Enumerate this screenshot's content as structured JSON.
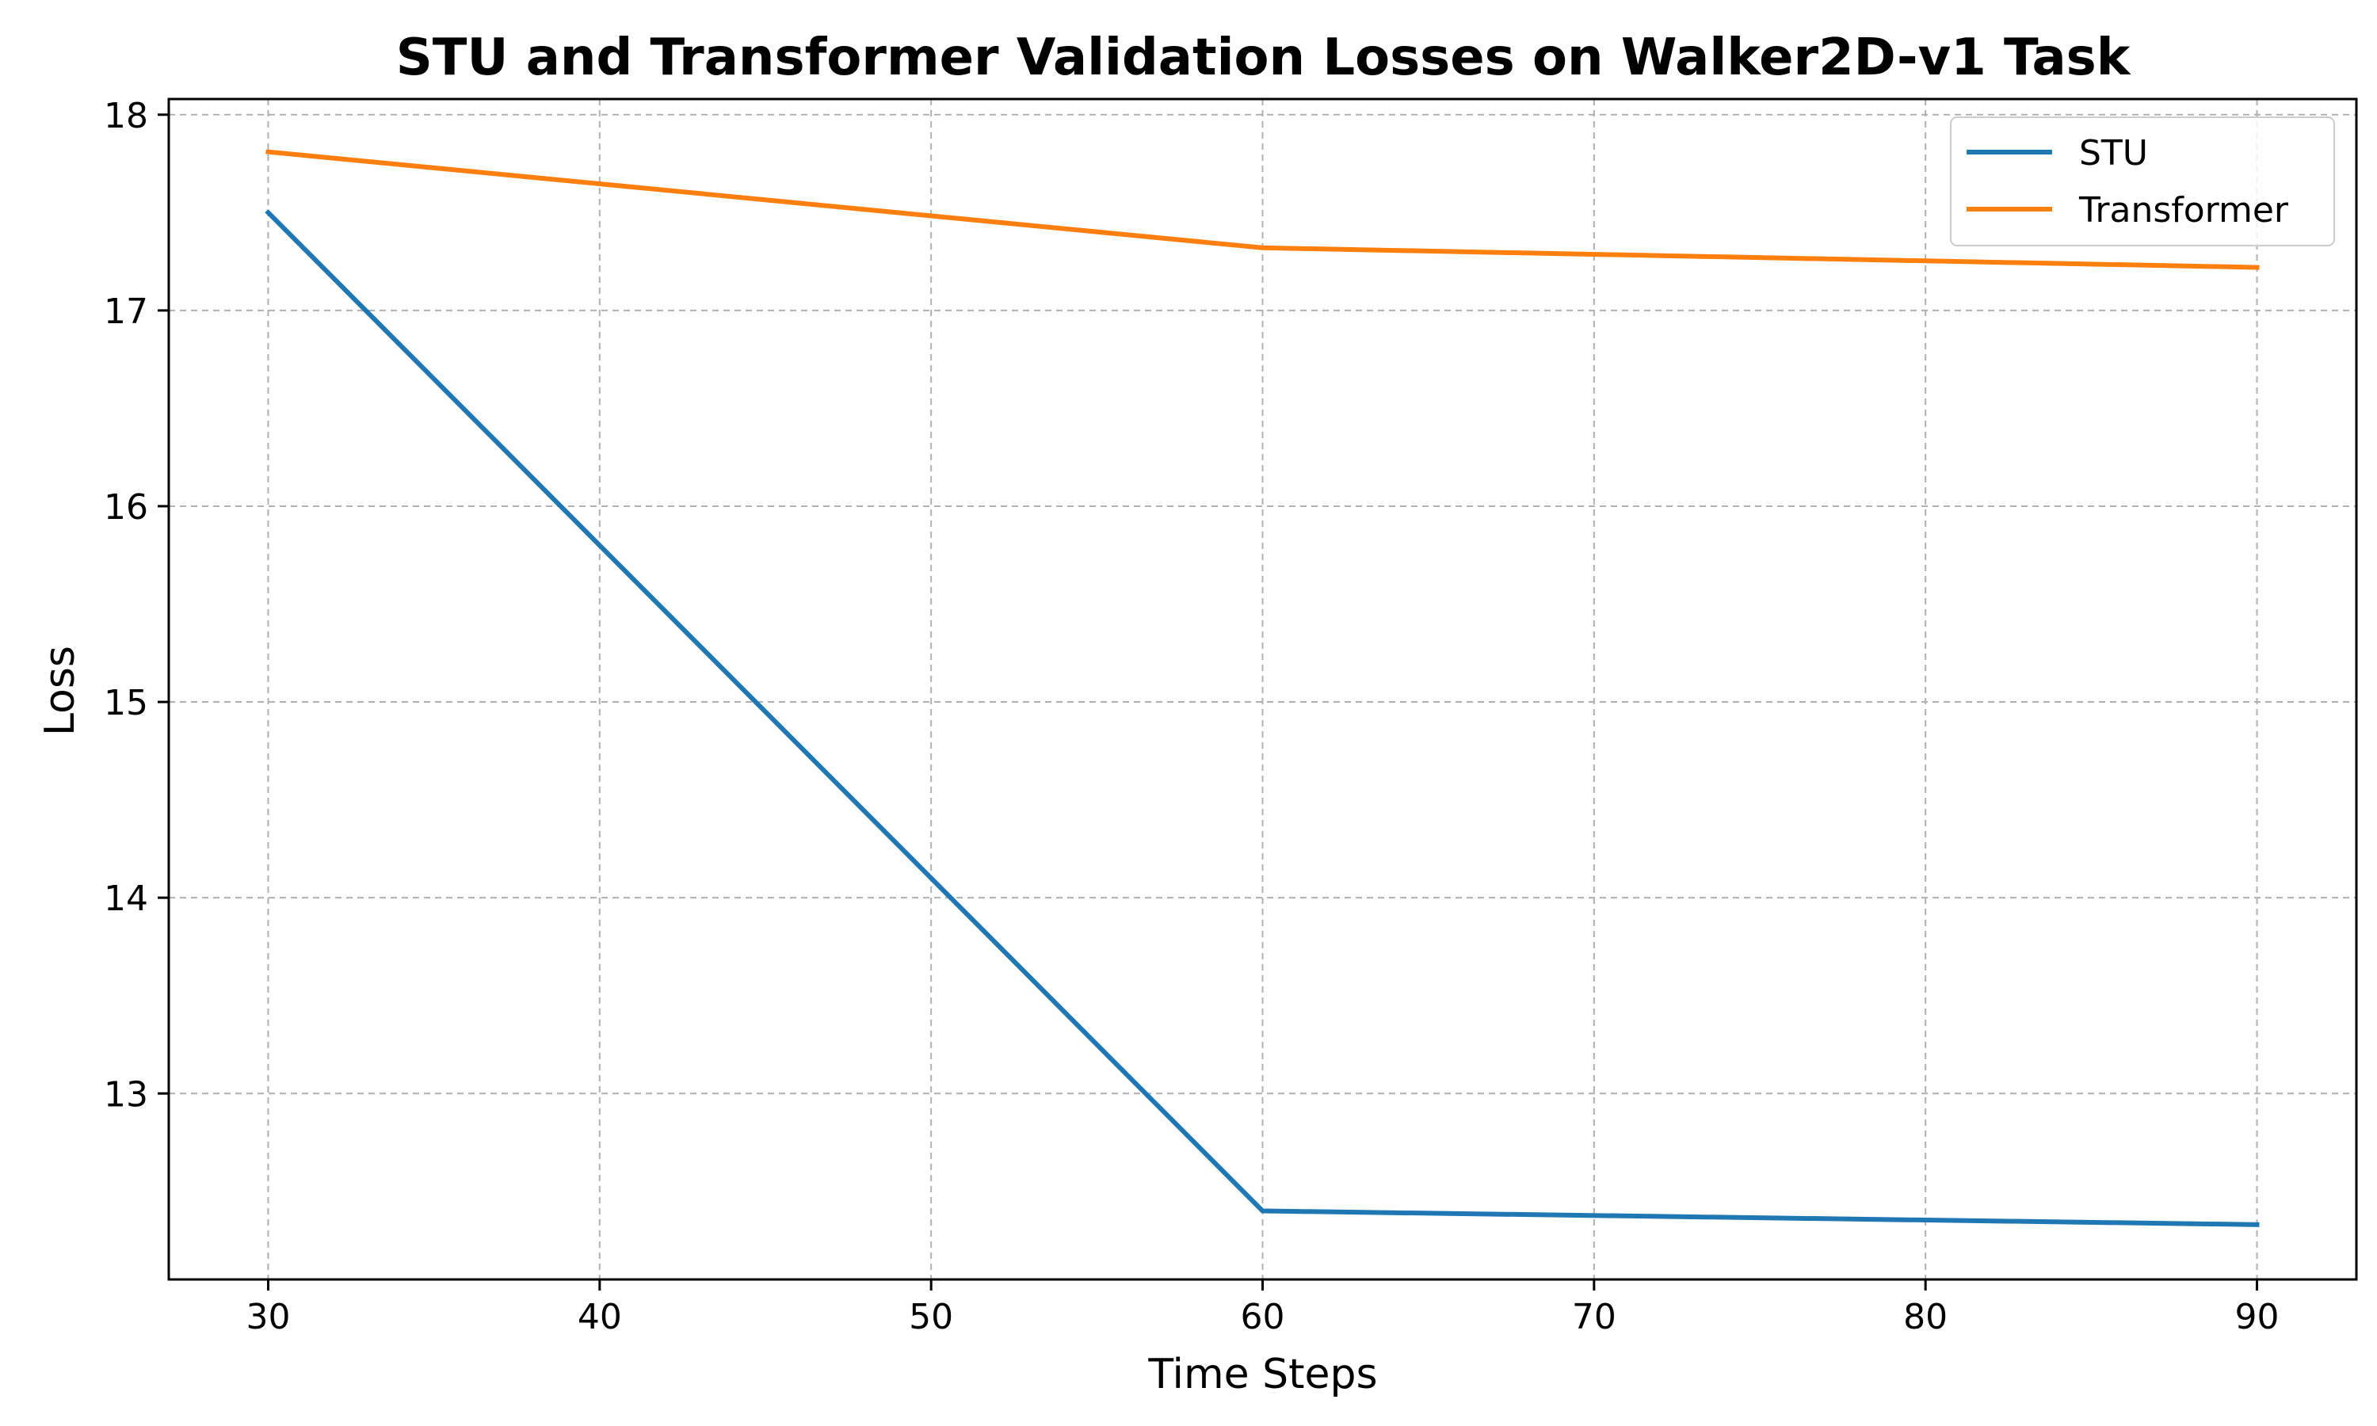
{
  "chart_data": {
    "type": "line",
    "title": "STU and Transformer Validation Losses on Walker2D-v1 Task",
    "xlabel": "Time Steps",
    "ylabel": "Loss",
    "x": [
      30,
      60,
      90
    ],
    "xlim": [
      27,
      93
    ],
    "ylim": [
      12.05,
      18.08
    ],
    "xticks": [
      30,
      40,
      50,
      60,
      70,
      80,
      90
    ],
    "yticks": [
      13,
      14,
      15,
      16,
      17,
      18
    ],
    "grid": true,
    "legend_position": "top-right",
    "series": [
      {
        "name": "STU",
        "color": "#1f77b4",
        "values": [
          17.5,
          12.4,
          12.33
        ]
      },
      {
        "name": "Transformer",
        "color": "#ff7f0e",
        "values": [
          17.81,
          17.32,
          17.22
        ]
      }
    ]
  }
}
